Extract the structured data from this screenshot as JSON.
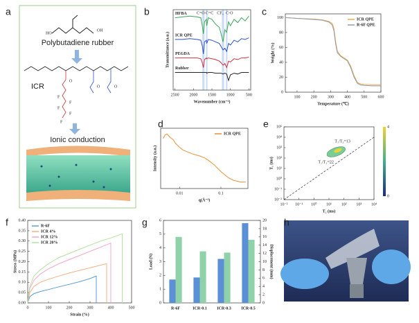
{
  "panel_labels": [
    "a",
    "b",
    "c",
    "d",
    "e",
    "f",
    "g",
    "h"
  ],
  "scheme": {
    "labels": [
      "HO",
      "OH",
      "Polybutadiene rubber",
      "ICR",
      "Ionic conduction"
    ],
    "atoms": {
      "F": "F",
      "O": "O"
    }
  },
  "chart_data": [
    {
      "type": "line",
      "xlabel": "Wavenumber (cm⁻¹)",
      "ylabel": "Transmittance (a.u.)",
      "legend": "inline",
      "x": [
        2500,
        2300,
        2100,
        1900,
        1800,
        1760,
        1730,
        1700,
        1650,
        1640,
        1600,
        1500,
        1400,
        1300,
        1250,
        1200,
        1150,
        1100,
        1050,
        1000,
        900,
        800,
        700,
        600,
        500
      ],
      "xlim": [
        2550,
        450
      ],
      "xticks": [
        2500,
        2000,
        1500,
        1000,
        500
      ],
      "ylim": [
        0,
        100
      ],
      "highlights": [
        [
          1760,
          1700
        ],
        [
          1660,
          1620
        ],
        [
          1230,
          1170
        ],
        [
          1120,
          1080
        ]
      ],
      "annotations": [
        "C=O",
        "C=C",
        "CF₃",
        "C-O"
      ],
      "series": [
        {
          "name": "HFBA",
          "color": "#3aa657",
          "values": [
            90,
            91,
            92,
            91,
            90,
            80,
            70,
            85,
            88,
            80,
            90,
            88,
            82,
            78,
            70,
            60,
            75,
            72,
            85,
            80,
            88,
            84,
            90,
            86,
            92
          ]
        },
        {
          "name": "ICR QPE",
          "color": "#2b4fd0",
          "values": [
            63,
            63,
            64,
            63,
            62,
            55,
            45,
            60,
            62,
            58,
            63,
            62,
            60,
            58,
            54,
            50,
            52,
            48,
            58,
            56,
            62,
            60,
            64,
            63,
            65
          ]
        },
        {
          "name": "PEGDA",
          "color": "#d6303a",
          "values": [
            40,
            40,
            40,
            40,
            39,
            34,
            28,
            38,
            40,
            39,
            40,
            39,
            38,
            36,
            34,
            31,
            33,
            28,
            36,
            35,
            39,
            38,
            40,
            40,
            41
          ]
        },
        {
          "name": "Rubber",
          "color": "#222222",
          "values": [
            22,
            22,
            22,
            22,
            22,
            22,
            22,
            22,
            22,
            21,
            22,
            22,
            21,
            21,
            21,
            20,
            21,
            20,
            12,
            19,
            21,
            20,
            22,
            22,
            22
          ]
        }
      ]
    },
    {
      "type": "line",
      "xlabel": "Temperature (℃)",
      "ylabel": "Weight (%)",
      "legend": "upper right",
      "x": [
        30,
        100,
        200,
        250,
        290,
        310,
        320,
        330,
        340,
        360,
        380,
        400,
        420,
        440,
        460,
        480,
        500,
        550,
        600
      ],
      "xlim": [
        30,
        600
      ],
      "xticks": [
        100,
        200,
        300,
        400,
        500,
        600
      ],
      "ylim": [
        0,
        105
      ],
      "yticks": [
        0,
        20,
        40,
        60,
        80,
        100
      ],
      "series": [
        {
          "name": "ICR QPE",
          "color": "#f5a742",
          "values": [
            100,
            99,
            98,
            97,
            95,
            92,
            85,
            68,
            55,
            49,
            46,
            43,
            35,
            22,
            13,
            11,
            10.5,
            10,
            10
          ]
        },
        {
          "name": "R-6F QPE",
          "color": "#8a9bb0",
          "values": [
            100,
            99,
            97.5,
            96.5,
            94,
            90,
            82,
            65,
            53,
            48,
            45,
            42,
            33,
            20,
            12,
            9.5,
            9,
            8.5,
            8.5
          ]
        }
      ]
    },
    {
      "type": "line",
      "xlabel": "q(Å⁻¹)",
      "ylabel": "Intensity (a.u.)",
      "legend": "upper right",
      "xlog": true,
      "ylog": true,
      "x": [
        0.004,
        0.0045,
        0.005,
        0.006,
        0.007,
        0.008,
        0.01,
        0.012,
        0.015,
        0.02,
        0.03,
        0.04,
        0.05,
        0.07,
        0.1,
        0.15,
        0.2,
        0.3,
        0.4
      ],
      "xlim": [
        0.0035,
        0.45
      ],
      "xticks": [
        0.01,
        0.1
      ],
      "ylim": [
        0.5,
        300
      ],
      "series": [
        {
          "name": "ICR QPE",
          "color": "#e8913a",
          "values": [
            100,
            150,
            160,
            110,
            90,
            60,
            40,
            30,
            25,
            20,
            16,
            13,
            10,
            6,
            3,
            1.6,
            1.2,
            1,
            1
          ]
        }
      ]
    },
    {
      "type": "map",
      "xlabel": "T₂ (ms)",
      "ylabel": "T₁ (ms)",
      "xlog": true,
      "ylog": true,
      "xlim": [
        0.01,
        10000
      ],
      "ylim": [
        0.01,
        100000
      ],
      "xticks": [
        {
          "value": 0.01,
          "label": "10⁻²"
        },
        {
          "value": 0.1,
          "label": "10⁻¹"
        },
        {
          "value": 1,
          "label": "10⁰"
        },
        {
          "value": 10,
          "label": "10¹"
        },
        {
          "value": 100,
          "label": "10²"
        },
        {
          "value": 1000,
          "label": "10³"
        },
        {
          "value": 10000,
          "label": "10⁴"
        }
      ],
      "yticks": [
        {
          "value": 0.01,
          "label": "10⁻²"
        },
        {
          "value": 0.1,
          "label": "10⁻¹"
        },
        {
          "value": 1,
          "label": "10⁰"
        },
        {
          "value": 10,
          "label": "10¹"
        },
        {
          "value": 100,
          "label": "10²"
        },
        {
          "value": 1000,
          "label": "10³"
        },
        {
          "value": 10000,
          "label": "10⁴"
        },
        {
          "value": 100000,
          "label": "10⁵"
        }
      ],
      "peak_x": 30,
      "peak_y": 400,
      "annotations": [
        "T₁/T₂=13",
        "T₁/T₂=22"
      ],
      "clim": [
        0,
        4
      ],
      "cticks": [
        0,
        4
      ]
    },
    {
      "type": "line",
      "xlabel": "Strain (%)",
      "ylabel": "Stress (MPa)",
      "legend": "upper left",
      "xlim": [
        0,
        500
      ],
      "xticks": [
        0,
        100,
        200,
        300,
        400,
        500
      ],
      "ylim": [
        0,
        0.4
      ],
      "yticks": [
        {
          "value": 0,
          "label": "0.00"
        },
        0.05,
        {
          "value": 0.1,
          "label": "0.10"
        },
        0.15,
        {
          "value": 0.2,
          "label": "0.20"
        },
        0.25,
        {
          "value": 0.3,
          "label": "0.30"
        },
        0.35,
        {
          "value": 0.4,
          "label": "0.40"
        }
      ],
      "series": [
        {
          "name": "R-6F",
          "color": "#5b9bd5",
          "x": [
            0,
            10,
            30,
            60,
            100,
            150,
            200,
            250,
            300,
            330,
            330
          ],
          "values": [
            0,
            0.03,
            0.045,
            0.055,
            0.065,
            0.078,
            0.09,
            0.103,
            0.118,
            0.13,
            0
          ]
        },
        {
          "name": "ICR 4%",
          "color": "#f4b183",
          "x": [
            0,
            10,
            30,
            60,
            100,
            150,
            200,
            250,
            300,
            350,
            380,
            380
          ],
          "values": [
            0,
            0.05,
            0.08,
            0.1,
            0.115,
            0.13,
            0.145,
            0.158,
            0.17,
            0.183,
            0.19,
            0
          ]
        },
        {
          "name": "ICR 12%",
          "color": "#f4a6c8",
          "x": [
            0,
            10,
            30,
            60,
            100,
            150,
            200,
            250,
            300,
            350,
            400,
            400
          ],
          "values": [
            0,
            0.07,
            0.11,
            0.14,
            0.165,
            0.19,
            0.21,
            0.23,
            0.25,
            0.27,
            0.29,
            0
          ]
        },
        {
          "name": "ICR 20%",
          "color": "#b4e0a0",
          "x": [
            0,
            10,
            30,
            60,
            100,
            150,
            200,
            250,
            300,
            350,
            400,
            455,
            455
          ],
          "values": [
            0,
            0.08,
            0.13,
            0.16,
            0.19,
            0.22,
            0.24,
            0.26,
            0.28,
            0.3,
            0.315,
            0.335,
            0
          ]
        }
      ]
    },
    {
      "type": "bar",
      "ylabel": "Load (N)",
      "y2label": "Displacement (mm)",
      "categories": [
        "R-6F",
        "ICR-0.1",
        "ICR-0.3",
        "ICR-0.5"
      ],
      "ylim": [
        0,
        6
      ],
      "yticks": [
        0,
        1,
        2,
        3,
        4,
        5,
        6
      ],
      "y2lim": [
        0,
        20
      ],
      "y2ticks": [
        0,
        2,
        4,
        6,
        8,
        10,
        12,
        14,
        16,
        18,
        20
      ],
      "series": [
        {
          "name": "Load (N)",
          "color": "#5b8fd6",
          "values": [
            1.7,
            1.85,
            3.2,
            5.8
          ]
        },
        {
          "name": "Displacement (mm)",
          "color": "#8fd1a8",
          "axis": "y2",
          "values": [
            16,
            12.5,
            12.2,
            15.3
          ]
        }
      ]
    }
  ]
}
